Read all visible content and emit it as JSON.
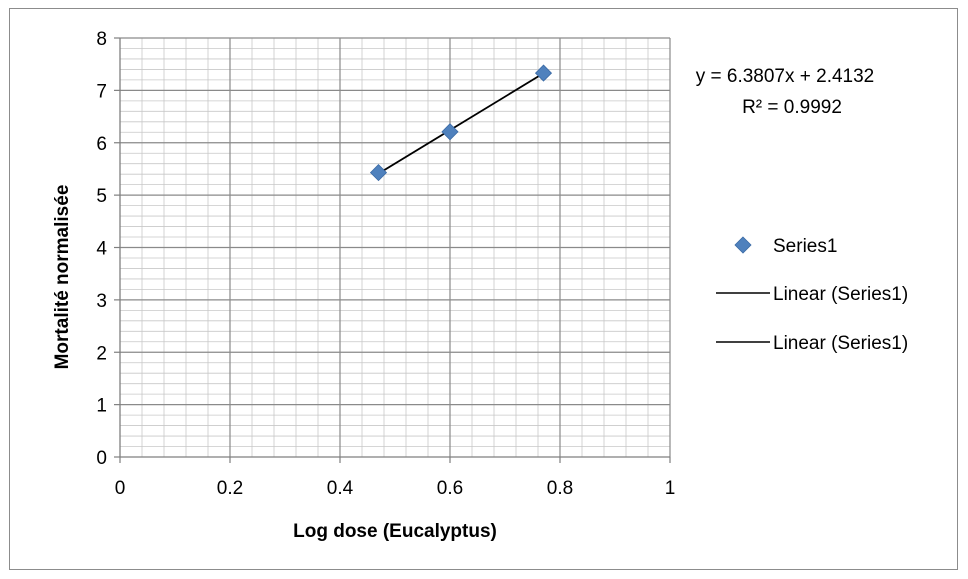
{
  "chart_data": {
    "type": "scatter",
    "xlabel": "Log dose (Eucalyptus)",
    "ylabel": "Mortalité normalisée",
    "xlim": [
      0,
      1
    ],
    "ylim": [
      0,
      8
    ],
    "x_ticks": [
      "0",
      "0.2",
      "0.4",
      "0.6",
      "0.8",
      "1"
    ],
    "y_ticks": [
      "0",
      "1",
      "2",
      "3",
      "4",
      "5",
      "6",
      "7",
      "8"
    ],
    "x_major_step": 0.2,
    "y_major_step": 1,
    "x_minor_step": 0.04,
    "y_minor_step": 0.2,
    "grid": true,
    "legend_position": "right",
    "series": [
      {
        "name": "Series1",
        "x": [
          0.47,
          0.6,
          0.77
        ],
        "y": [
          5.43,
          6.21,
          7.33
        ],
        "color": "#4f81bd",
        "marker": "diamond"
      }
    ],
    "trendline": {
      "slope": 6.3807,
      "intercept": 2.4132,
      "x_range": [
        0.47,
        0.77
      ],
      "color": "#000000"
    },
    "annotations": {
      "equation": "y = 6.3807x + 2.4132",
      "r_squared": "R² = 0.9992"
    },
    "legend": [
      {
        "label": "Series1",
        "symbol": "diamond",
        "color": "#4f81bd"
      },
      {
        "label": "Linear (Series1)",
        "symbol": "line",
        "color": "#000000"
      },
      {
        "label": "Linear (Series1)",
        "symbol": "line",
        "color": "#000000"
      }
    ]
  }
}
